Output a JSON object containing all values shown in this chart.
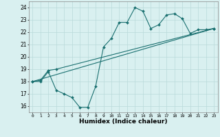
{
  "xlabel": "Humidex (Indice chaleur)",
  "bg_color": "#d9f0f0",
  "line_color": "#1a7070",
  "grid_color": "#b8dada",
  "xlim": [
    -0.5,
    23.5
  ],
  "ylim": [
    15.5,
    24.5
  ],
  "xticks": [
    0,
    1,
    2,
    3,
    4,
    5,
    6,
    7,
    8,
    9,
    10,
    11,
    12,
    13,
    14,
    15,
    16,
    17,
    18,
    19,
    20,
    21,
    22,
    23
  ],
  "yticks": [
    16,
    17,
    18,
    19,
    20,
    21,
    22,
    23,
    24
  ],
  "series": [
    {
      "x": [
        0,
        1,
        2,
        3,
        4,
        5,
        6,
        7,
        8,
        9,
        10,
        11,
        12,
        13,
        14,
        15,
        16,
        17,
        18,
        19,
        20,
        21,
        22,
        23
      ],
      "y": [
        18.0,
        18.0,
        18.8,
        17.3,
        17.0,
        16.7,
        15.9,
        15.9,
        17.6,
        20.8,
        21.5,
        22.8,
        22.8,
        24.0,
        23.7,
        22.3,
        22.6,
        23.4,
        23.5,
        23.1,
        21.9,
        22.2,
        22.2,
        22.3
      ]
    },
    {
      "x": [
        0,
        1,
        2,
        3,
        23
      ],
      "y": [
        18.0,
        18.1,
        18.9,
        19.0,
        22.3
      ]
    },
    {
      "x": [
        0,
        23
      ],
      "y": [
        18.0,
        22.3
      ]
    }
  ]
}
